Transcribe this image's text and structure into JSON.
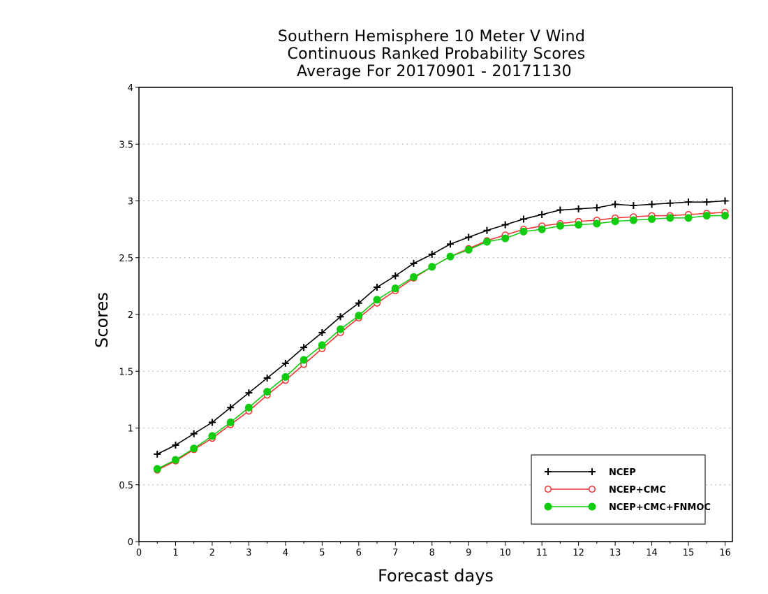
{
  "chart_data": {
    "type": "line",
    "title": [
      "Southern Hemisphere 10 Meter V Wind",
      "Continuous Ranked Probability Scores",
      "Average For 20170901 - 20171130"
    ],
    "xlabel": "Forecast days",
    "ylabel": "Scores",
    "xlim": [
      0,
      16.2
    ],
    "ylim": [
      0,
      4
    ],
    "xticks": [
      0,
      1,
      2,
      3,
      4,
      5,
      6,
      7,
      8,
      9,
      10,
      11,
      12,
      13,
      14,
      15,
      16
    ],
    "xtick_labels": [
      "0",
      "1",
      "2",
      "3",
      "4",
      "5",
      "6",
      "7",
      "8",
      "9",
      "10",
      "11",
      "12",
      "13",
      "14",
      "15",
      "16"
    ],
    "yticks": [
      0,
      0.5,
      1,
      1.5,
      2,
      2.5,
      3,
      3.5,
      4
    ],
    "ytick_labels": [
      "0",
      "0.5",
      "1",
      "1.5",
      "2",
      "2.5",
      "3",
      "3.5",
      "4"
    ],
    "grid": "horizontal dotted",
    "legend_position": "bottom-right",
    "x": [
      0.5,
      1,
      1.5,
      2,
      2.5,
      3,
      3.5,
      4,
      4.5,
      5,
      5.5,
      6,
      6.5,
      7,
      7.5,
      8,
      8.5,
      9,
      9.5,
      10,
      10.5,
      11,
      11.5,
      12,
      12.5,
      13,
      13.5,
      14,
      14.5,
      15,
      15.5,
      16
    ],
    "series": [
      {
        "name": "NCEP",
        "color": "#000000",
        "marker": "plus",
        "values": [
          0.77,
          0.85,
          0.95,
          1.05,
          1.18,
          1.31,
          1.44,
          1.57,
          1.71,
          1.84,
          1.98,
          2.1,
          2.24,
          2.34,
          2.45,
          2.53,
          2.62,
          2.68,
          2.74,
          2.79,
          2.84,
          2.88,
          2.92,
          2.93,
          2.94,
          2.97,
          2.96,
          2.97,
          2.98,
          2.99,
          2.99,
          3.0
        ]
      },
      {
        "name": "NCEP+CMC",
        "color": "#ee3333",
        "marker": "open-circle",
        "values": [
          0.63,
          0.71,
          0.81,
          0.91,
          1.03,
          1.15,
          1.29,
          1.42,
          1.56,
          1.7,
          1.84,
          1.97,
          2.1,
          2.21,
          2.32,
          2.42,
          2.51,
          2.58,
          2.65,
          2.7,
          2.75,
          2.78,
          2.8,
          2.82,
          2.83,
          2.85,
          2.86,
          2.87,
          2.87,
          2.88,
          2.89,
          2.9
        ]
      },
      {
        "name": "NCEP+CMC+FNMOC",
        "color": "#11cc11",
        "marker": "filled-circle",
        "values": [
          0.64,
          0.72,
          0.82,
          0.93,
          1.05,
          1.18,
          1.32,
          1.45,
          1.6,
          1.73,
          1.87,
          1.99,
          2.13,
          2.23,
          2.33,
          2.42,
          2.51,
          2.57,
          2.64,
          2.67,
          2.73,
          2.75,
          2.78,
          2.79,
          2.8,
          2.82,
          2.83,
          2.84,
          2.85,
          2.85,
          2.87,
          2.87
        ]
      }
    ]
  }
}
